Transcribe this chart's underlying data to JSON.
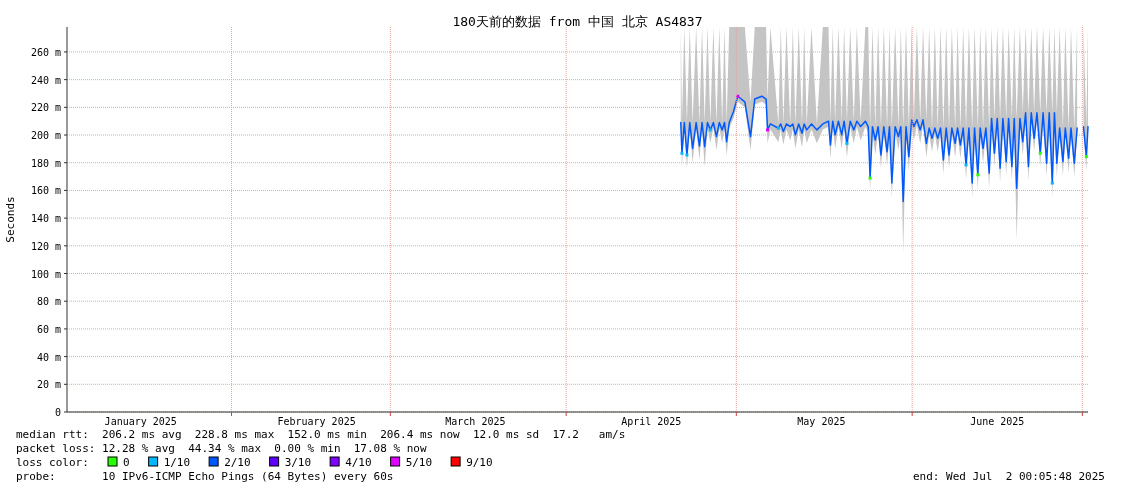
{
  "chart_data": {
    "type": "line",
    "title": "180天前的数据 from 中国 北京 AS4837",
    "ylabel": "Seconds",
    "xlim": [
      "2025-01-03",
      "2025-07-02"
    ],
    "xticks": [
      {
        "value": "2025-01-16",
        "label": "January 2025"
      },
      {
        "value": "2025-02-01",
        "label": null
      },
      {
        "value": "2025-02-16",
        "label": "February 2025"
      },
      {
        "value": "2025-03-01",
        "label": null
      },
      {
        "value": "2025-03-16",
        "label": "March 2025"
      },
      {
        "value": "2025-04-01",
        "label": null
      },
      {
        "value": "2025-04-16",
        "label": "April 2025"
      },
      {
        "value": "2025-05-01",
        "label": null
      },
      {
        "value": "2025-05-16",
        "label": "May 2025"
      },
      {
        "value": "2025-06-01",
        "label": null
      },
      {
        "value": "2025-06-16",
        "label": "June 2025"
      },
      {
        "value": "2025-07-01",
        "label": null
      }
    ],
    "ylim": [
      0,
      278
    ],
    "yticks": [
      0,
      {
        "value": 20,
        "label": "20 m"
      },
      {
        "value": 40,
        "label": "40 m"
      },
      {
        "value": 60,
        "label": "60 m"
      },
      {
        "value": 80,
        "label": "80 m"
      },
      {
        "value": 100,
        "label": "100 m"
      },
      {
        "value": 120,
        "label": "120 m"
      },
      {
        "value": 140,
        "label": "140 m"
      },
      {
        "value": 160,
        "label": "160 m"
      },
      {
        "value": 180,
        "label": "180 m"
      },
      {
        "value": 200,
        "label": "200 m"
      },
      {
        "value": 220,
        "label": "220 m"
      },
      {
        "value": 240,
        "label": "240 m"
      },
      {
        "value": 260,
        "label": "260 m"
      }
    ],
    "grid": true,
    "legend": "bottom",
    "legend_title": "loss color:",
    "series": [
      {
        "name": "0",
        "type": "scatter",
        "marker": "square",
        "color": "#26ff00",
        "x": [
          "2025-05-24T14:00",
          "2025-06-12T14:00",
          "2025-06-23T14:00",
          "2025-07-01T17:00"
        ],
        "values": [
          168.9,
          171.3,
          186.8,
          184.4
        ]
      },
      {
        "name": "1/10",
        "type": "scatter",
        "marker": "square",
        "color": "#00b8ff",
        "x": [
          "2025-04-21T10:00",
          "2025-04-22T07:00",
          "2025-04-26T10:00",
          "2025-05-08T10:00",
          "2025-05-20T12:00",
          "2025-06-10T12:00",
          "2025-06-25T17:00"
        ],
        "values": [
          186.8,
          185.6,
          203.7,
          204.9,
          194,
          178.4,
          165.3
        ]
      },
      {
        "name": "2/10",
        "color": "#0059ff",
        "x": [
          "2025-04-21T05:00",
          "2025-04-21T10:00",
          "2025-04-21T20:00",
          "2025-04-22T07:00",
          "2025-04-22T19:00",
          "2025-04-23T07:00",
          "2025-04-23T22:00",
          "2025-04-24T12:00",
          "2025-04-24T23:00",
          "2025-04-25T10:00",
          "2025-04-25T22:00",
          "2025-04-26T10:00",
          "2025-04-26T23:00",
          "2025-04-27T12:00",
          "2025-04-28T00:00",
          "2025-04-28T12:00",
          "2025-04-28T22:00",
          "2025-04-29T07:00",
          "2025-04-29T18:00",
          "2025-04-30T12:00",
          "2025-05-01T06:00",
          "2025-05-02T12:00",
          "2025-05-03T12:00",
          "2025-05-04T06:00",
          "2025-05-05T12:00",
          "2025-05-06T06:00",
          "2025-05-06T12:00",
          "2025-05-07T00:00",
          "2025-05-08T10:00",
          "2025-05-08T20:00",
          "2025-05-09T07:00",
          "2025-05-09T20:00",
          "2025-05-10T12:00",
          "2025-05-10T23:00",
          "2025-05-11T10:00",
          "2025-05-12T00:00",
          "2025-05-12T14:00",
          "2025-05-12T23:00",
          "2025-05-13T10:00",
          "2025-05-14T06:00",
          "2025-05-15T05:00",
          "2025-05-16T06:00",
          "2025-05-17T06:00",
          "2025-05-17T14:00",
          "2025-05-18T00:00",
          "2025-05-18T10:00",
          "2025-05-19T00:00",
          "2025-05-19T14:00",
          "2025-05-20T00:00",
          "2025-05-20T12:00",
          "2025-05-21T02:00",
          "2025-05-21T17:00",
          "2025-05-22T06:00",
          "2025-05-22T22:00",
          "2025-05-23T18:00",
          "2025-05-24T06:00",
          "2025-05-24T14:00",
          "2025-05-25T00:00",
          "2025-05-25T12:00",
          "2025-05-26T00:00",
          "2025-05-26T12:00",
          "2025-05-27T00:00",
          "2025-05-27T14:00",
          "2025-05-28T00:00",
          "2025-05-28T10:00",
          "2025-05-29T00:00",
          "2025-05-29T14:00",
          "2025-05-30T00:00",
          "2025-05-30T10:00",
          "2025-05-30T22:00",
          "2025-05-31T10:00",
          "2025-05-31T22:00",
          "2025-06-01T07:00",
          "2025-06-01T20:00",
          "2025-06-02T10:00",
          "2025-06-02T22:00",
          "2025-06-03T12:00",
          "2025-06-04T00:00",
          "2025-06-04T12:00",
          "2025-06-05T00:00",
          "2025-06-05T12:00",
          "2025-06-06T00:00",
          "2025-06-06T12:00",
          "2025-06-07T00:00",
          "2025-06-07T12:00",
          "2025-06-08T00:00",
          "2025-06-08T14:00",
          "2025-06-09T00:00",
          "2025-06-09T12:00",
          "2025-06-10T00:00",
          "2025-06-10T12:00",
          "2025-06-11T00:00",
          "2025-06-11T14:00",
          "2025-06-12T00:00",
          "2025-06-12T14:00",
          "2025-06-13T00:00",
          "2025-06-13T12:00",
          "2025-06-14T00:00",
          "2025-06-14T14:00",
          "2025-06-15T00:00",
          "2025-06-15T12:00",
          "2025-06-16T00:00",
          "2025-06-16T12:00",
          "2025-06-17T00:00",
          "2025-06-17T14:00",
          "2025-06-18T00:00",
          "2025-06-18T14:00",
          "2025-06-19T00:00",
          "2025-06-19T10:00",
          "2025-06-20T00:00",
          "2025-06-20T12:00",
          "2025-06-21T00:00",
          "2025-06-21T12:00",
          "2025-06-22T00:00",
          "2025-06-22T12:00",
          "2025-06-23T00:00",
          "2025-06-23T14:00",
          "2025-06-24T02:00",
          "2025-06-24T17:00",
          "2025-06-25T04:00",
          "2025-06-25T17:00",
          "2025-06-26T02:00",
          "2025-06-26T12:00",
          "2025-06-27T00:00",
          "2025-06-27T14:00",
          "2025-06-28T00:00",
          "2025-06-28T14:00",
          "2025-06-29T00:00",
          "2025-06-29T14:00",
          "2025-06-30T02:00",
          "2025-06-30T12:00",
          "2025-07-01T05:00",
          "2025-07-01T17:00",
          "2025-07-02T00:00"
        ],
        "values": [
          209,
          186.8,
          209,
          185.6,
          209,
          190.4,
          209,
          192.1,
          209,
          191.6,
          209,
          203.7,
          209,
          198.9,
          209,
          203.7,
          209,
          195.2,
          209,
          217,
          228,
          224,
          198.9,
          226,
          228,
          226,
          203.7,
          208,
          204.9,
          208,
          202.5,
          208,
          206.1,
          208,
          200.1,
          208,
          201.3,
          208,
          203.7,
          208,
          203.7,
          208,
          210,
          192.8,
          210,
          200.1,
          210,
          200.1,
          210,
          194,
          210,
          203.7,
          210,
          206.1,
          210,
          206,
          168.9,
          206,
          196.4,
          206,
          185.6,
          206,
          188,
          206,
          165.3,
          206,
          198.9,
          206,
          152,
          206,
          184.4,
          211,
          206.1,
          211,
          203.7,
          211,
          194,
          205,
          197.6,
          205,
          197.6,
          205,
          182,
          205,
          185.6,
          205,
          194,
          205,
          192.8,
          205,
          178.4,
          205,
          165.3,
          205,
          171.3,
          205,
          190.4,
          205,
          172.5,
          212,
          186.8,
          212,
          176,
          212,
          180.8,
          212,
          177.2,
          212,
          161.6,
          212,
          195.2,
          216,
          177.2,
          216,
          197.6,
          216,
          186.8,
          216,
          179.6,
          216,
          165.3,
          216,
          179.6,
          205,
          180.8,
          205,
          183.2,
          205,
          179.6,
          205,
          null,
          206,
          184.4,
          206
        ],
        "lower": [
          205,
          177,
          205,
          176,
          205,
          180,
          205,
          182,
          205,
          177,
          205,
          194,
          205,
          189,
          205,
          194,
          205,
          185,
          205,
          212,
          224,
          220,
          189,
          222,
          224,
          222,
          194,
          204,
          195,
          204,
          193,
          204,
          196,
          204,
          190,
          204,
          191,
          204,
          194,
          204,
          194,
          204,
          206,
          183,
          206,
          190,
          206,
          190,
          206,
          184,
          206,
          194,
          206,
          196,
          206,
          202,
          159,
          202,
          186,
          202,
          176,
          202,
          178,
          202,
          155,
          202,
          189,
          202,
          115,
          202,
          174,
          207,
          196,
          207,
          194,
          207,
          184,
          201,
          188,
          201,
          188,
          201,
          172,
          201,
          176,
          201,
          184,
          201,
          183,
          201,
          168,
          201,
          155,
          201,
          161,
          201,
          180,
          201,
          162,
          208,
          177,
          208,
          166,
          208,
          171,
          208,
          167,
          208,
          124,
          208,
          185,
          212,
          167,
          212,
          188,
          212,
          177,
          212,
          170,
          212,
          155,
          212,
          170,
          201,
          171,
          201,
          173,
          201,
          170,
          201,
          null,
          202,
          174,
          202
        ],
        "upper": [
          278,
          209,
          278,
          209,
          278,
          209,
          278,
          209,
          278,
          209,
          278,
          209,
          278,
          209,
          278,
          209,
          278,
          209,
          278,
          278,
          278,
          278,
          224,
          278,
          278,
          278,
          226,
          278,
          208,
          278,
          208,
          278,
          208,
          278,
          208,
          278,
          208,
          278,
          208,
          278,
          208,
          278,
          278,
          210,
          278,
          210,
          278,
          210,
          278,
          210,
          278,
          210,
          278,
          210,
          278,
          278,
          206,
          278,
          206,
          278,
          206,
          278,
          206,
          278,
          206,
          278,
          206,
          278,
          206,
          278,
          206,
          278,
          211,
          278,
          211,
          278,
          211,
          278,
          205,
          278,
          205,
          278,
          205,
          278,
          205,
          278,
          205,
          278,
          205,
          278,
          205,
          278,
          205,
          278,
          205,
          278,
          205,
          278,
          205,
          278,
          212,
          278,
          212,
          278,
          212,
          278,
          212,
          278,
          212,
          278,
          216,
          278,
          216,
          278,
          216,
          278,
          216,
          278,
          216,
          278,
          216,
          278,
          216,
          278,
          205,
          278,
          205,
          278,
          205,
          278,
          null,
          278,
          206,
          278
        ]
      },
      {
        "name": "3/10",
        "type": "scatter",
        "marker": "square",
        "color": "#5e00ff"
      },
      {
        "name": "4/10",
        "type": "scatter",
        "marker": "square",
        "color": "#7e00ff"
      },
      {
        "name": "5/10",
        "type": "scatter",
        "marker": "square",
        "color": "#dd00ff",
        "x": [
          "2025-05-01T06:00",
          "2025-05-06T12:00"
        ],
        "values": [
          228,
          203.7
        ]
      },
      {
        "name": "9/10",
        "type": "scatter",
        "marker": "square",
        "color": "#ff0000"
      }
    ],
    "annotations": [
      "median rtt:  206.2 ms avg  228.8 ms max  152.0 ms min  206.4 ms now  12.0 ms sd  17.2   am/s",
      "packet loss: 12.28 % avg  44.34 % max  0.00 % min  17.08 % now",
      "probe:       10 IPv6-ICMP Echo Pings (64 Bytes) every 60s",
      "end: Wed Jul  2 00:05:48 2025"
    ]
  }
}
